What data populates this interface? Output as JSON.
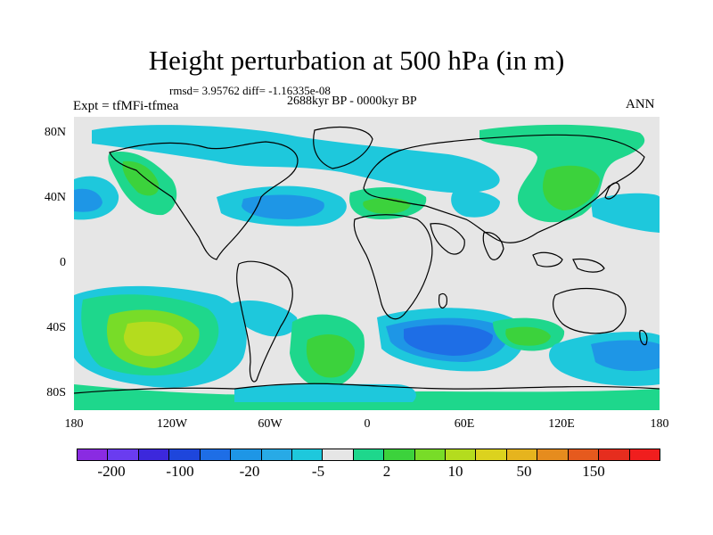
{
  "header": {
    "title": "Height perturbation at 500 hPa (in m)",
    "stats": "rmsd= 3.95762 diff= -1.16335e-08",
    "period": "2688kyr BP - 0000kyr BP",
    "experiment": "Expt = tfMFi-tfmea",
    "season": "ANN"
  },
  "axes": {
    "lat_labels": [
      "80N",
      "40N",
      "0",
      "40S",
      "80S"
    ],
    "lon_labels": [
      "180",
      "120W",
      "60W",
      "0",
      "60E",
      "120E",
      "180"
    ]
  },
  "colorbar": {
    "colors": [
      "#8a2be2",
      "#6a3cf0",
      "#3c28dc",
      "#1e46dc",
      "#1e6ee6",
      "#1e96e6",
      "#28aae6",
      "#1ec8dc",
      "#e6e6e6",
      "#1ed78c",
      "#3cd23c",
      "#78dc28",
      "#b4dc1e",
      "#dcd21e",
      "#e6b41e",
      "#e68c1e",
      "#e65a1e",
      "#e62d1e",
      "#f01e1e"
    ],
    "labels": [
      "-200",
      "-100",
      "-20",
      "-5",
      "2",
      "10",
      "50",
      "150"
    ]
  },
  "legend_colors": {
    "neutral": "#e6e6e6",
    "light_blue": "#1ec8dc",
    "mid_blue": "#1e96e6",
    "dark_blue": "#1e6ee6",
    "teal_green": "#1ed78c",
    "green": "#3cd23c",
    "yellow_green": "#b4dc1e"
  }
}
